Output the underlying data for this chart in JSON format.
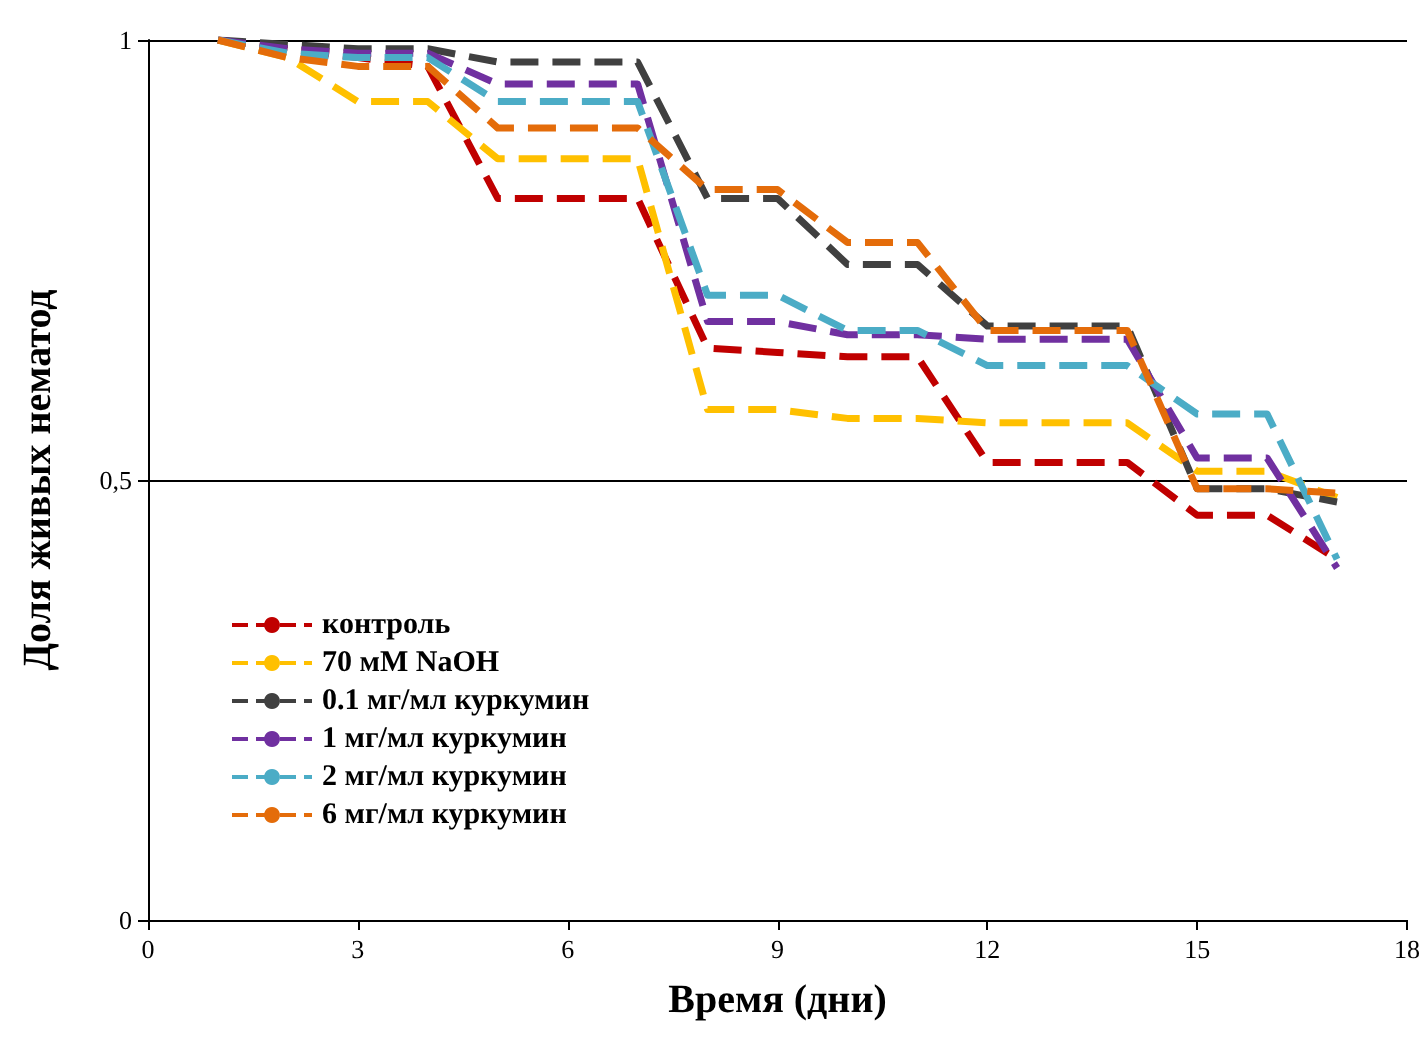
{
  "chart_data": {
    "type": "line",
    "xlabel": "Время (дни)",
    "ylabel": "Доля живых нематод",
    "x": [
      1,
      2,
      3,
      4,
      5,
      6,
      7,
      8,
      9,
      10,
      11,
      12,
      13,
      14,
      15,
      16,
      17
    ],
    "series": [
      {
        "name": "контроль",
        "color": "#c00000",
        "values": [
          1,
          0.99,
          0.98,
          0.97,
          0.82,
          0.82,
          0.82,
          0.65,
          0.645,
          0.64,
          0.64,
          0.52,
          0.52,
          0.52,
          0.46,
          0.46,
          0.41
        ]
      },
      {
        "name": "70 мМ NaOH",
        "color": "#ffc000",
        "values": [
          1,
          0.98,
          0.93,
          0.93,
          0.865,
          0.865,
          0.865,
          0.58,
          0.58,
          0.57,
          0.57,
          0.565,
          0.565,
          0.565,
          0.51,
          0.51,
          0.48
        ]
      },
      {
        "name": "0.1 мг/мл куркумин",
        "color": "#404040",
        "values": [
          1,
          0.995,
          0.99,
          0.99,
          0.975,
          0.975,
          0.975,
          0.82,
          0.82,
          0.745,
          0.745,
          0.675,
          0.675,
          0.675,
          0.49,
          0.49,
          0.475
        ]
      },
      {
        "name": "1 мг/мл куркумин",
        "color": "#7030a0",
        "values": [
          1,
          0.99,
          0.985,
          0.985,
          0.95,
          0.95,
          0.95,
          0.68,
          0.68,
          0.665,
          0.665,
          0.66,
          0.66,
          0.66,
          0.525,
          0.525,
          0.4
        ]
      },
      {
        "name": "2 мг/мл куркумин",
        "color": "#4bacc6",
        "values": [
          1,
          0.985,
          0.98,
          0.98,
          0.93,
          0.93,
          0.93,
          0.71,
          0.71,
          0.67,
          0.67,
          0.63,
          0.63,
          0.63,
          0.575,
          0.575,
          0.41
        ]
      },
      {
        "name": "6 мг/мл куркумин",
        "color": "#e46c0a",
        "values": [
          1,
          0.98,
          0.97,
          0.97,
          0.9,
          0.9,
          0.9,
          0.83,
          0.83,
          0.77,
          0.77,
          0.67,
          0.67,
          0.67,
          0.49,
          0.49,
          0.485
        ]
      }
    ],
    "xlim": [
      0,
      18
    ],
    "xticks": [
      0,
      3,
      6,
      9,
      12,
      15,
      18
    ],
    "ylim": [
      0,
      1
    ],
    "yticks": [
      0,
      {
        "value": 0.5,
        "label": "0,5"
      },
      1
    ],
    "grid": "y",
    "legend": "bottom left",
    "line_style": "dashed",
    "marker": "none"
  }
}
